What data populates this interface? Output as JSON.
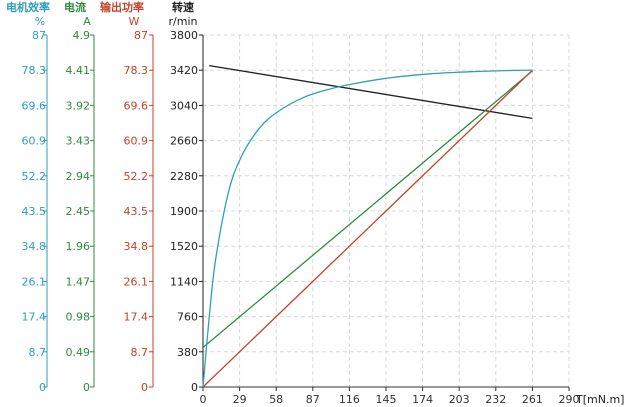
{
  "colors": {
    "efficiency": "#2f9fc0",
    "current": "#2e8b3e",
    "output_power": "#c0442a",
    "speed": "#222222",
    "grid": "#d9d9d9"
  },
  "chart_data": {
    "type": "line",
    "xlabel": "T[mN.m]",
    "x_ticks": [
      0,
      29,
      58,
      87,
      116,
      145,
      174,
      203,
      232,
      261,
      290
    ],
    "xlim": [
      0,
      290
    ],
    "grid": true,
    "axes": [
      {
        "id": "efficiency",
        "title": "电机效率",
        "unit": "%",
        "ylim": [
          0,
          87
        ],
        "ticks": [
          "0",
          "8.7",
          "17.4",
          "26.1",
          "34.8",
          "43.5",
          "52.2",
          "60.9",
          "69.6",
          "78.3",
          "87"
        ]
      },
      {
        "id": "current",
        "title": "电流",
        "unit": "A",
        "ylim": [
          0,
          4.9
        ],
        "ticks": [
          "0",
          "0.49",
          "0.98",
          "1.47",
          "1.96",
          "2.45",
          "2.94",
          "3.43",
          "3.92",
          "4.41",
          "4.9"
        ]
      },
      {
        "id": "output_power",
        "title": "输出功率",
        "unit": "W",
        "ylim": [
          0,
          87
        ],
        "ticks": [
          "0",
          "8.7",
          "17.4",
          "26.1",
          "34.8",
          "43.5",
          "52.2",
          "60.9",
          "69.6",
          "78.3",
          "87"
        ]
      },
      {
        "id": "speed",
        "title": "转速",
        "unit": "r/min",
        "ylim": [
          0,
          3800
        ],
        "ticks": [
          "0",
          "380",
          "760",
          "1140",
          "1520",
          "1900",
          "2280",
          "2660",
          "3040",
          "3420",
          "3800"
        ]
      }
    ],
    "series": [
      {
        "axis": "speed",
        "x": [
          5,
          261
        ],
        "y": [
          3470,
          2900
        ]
      },
      {
        "axis": "current",
        "x": [
          0,
          261
        ],
        "y": [
          0.55,
          4.4
        ]
      },
      {
        "axis": "output_power",
        "x": [
          0,
          261
        ],
        "y": [
          0,
          78.3
        ]
      },
      {
        "axis": "efficiency",
        "x": [
          0,
          5,
          10,
          20,
          30,
          45,
          60,
          80,
          100,
          120,
          150,
          180,
          210,
          240,
          261
        ],
        "y": [
          0,
          17.5,
          31.5,
          47.9,
          56.7,
          64.1,
          68.2,
          71.6,
          73.6,
          75.0,
          76.5,
          77.4,
          77.9,
          78.2,
          78.3
        ]
      }
    ]
  }
}
